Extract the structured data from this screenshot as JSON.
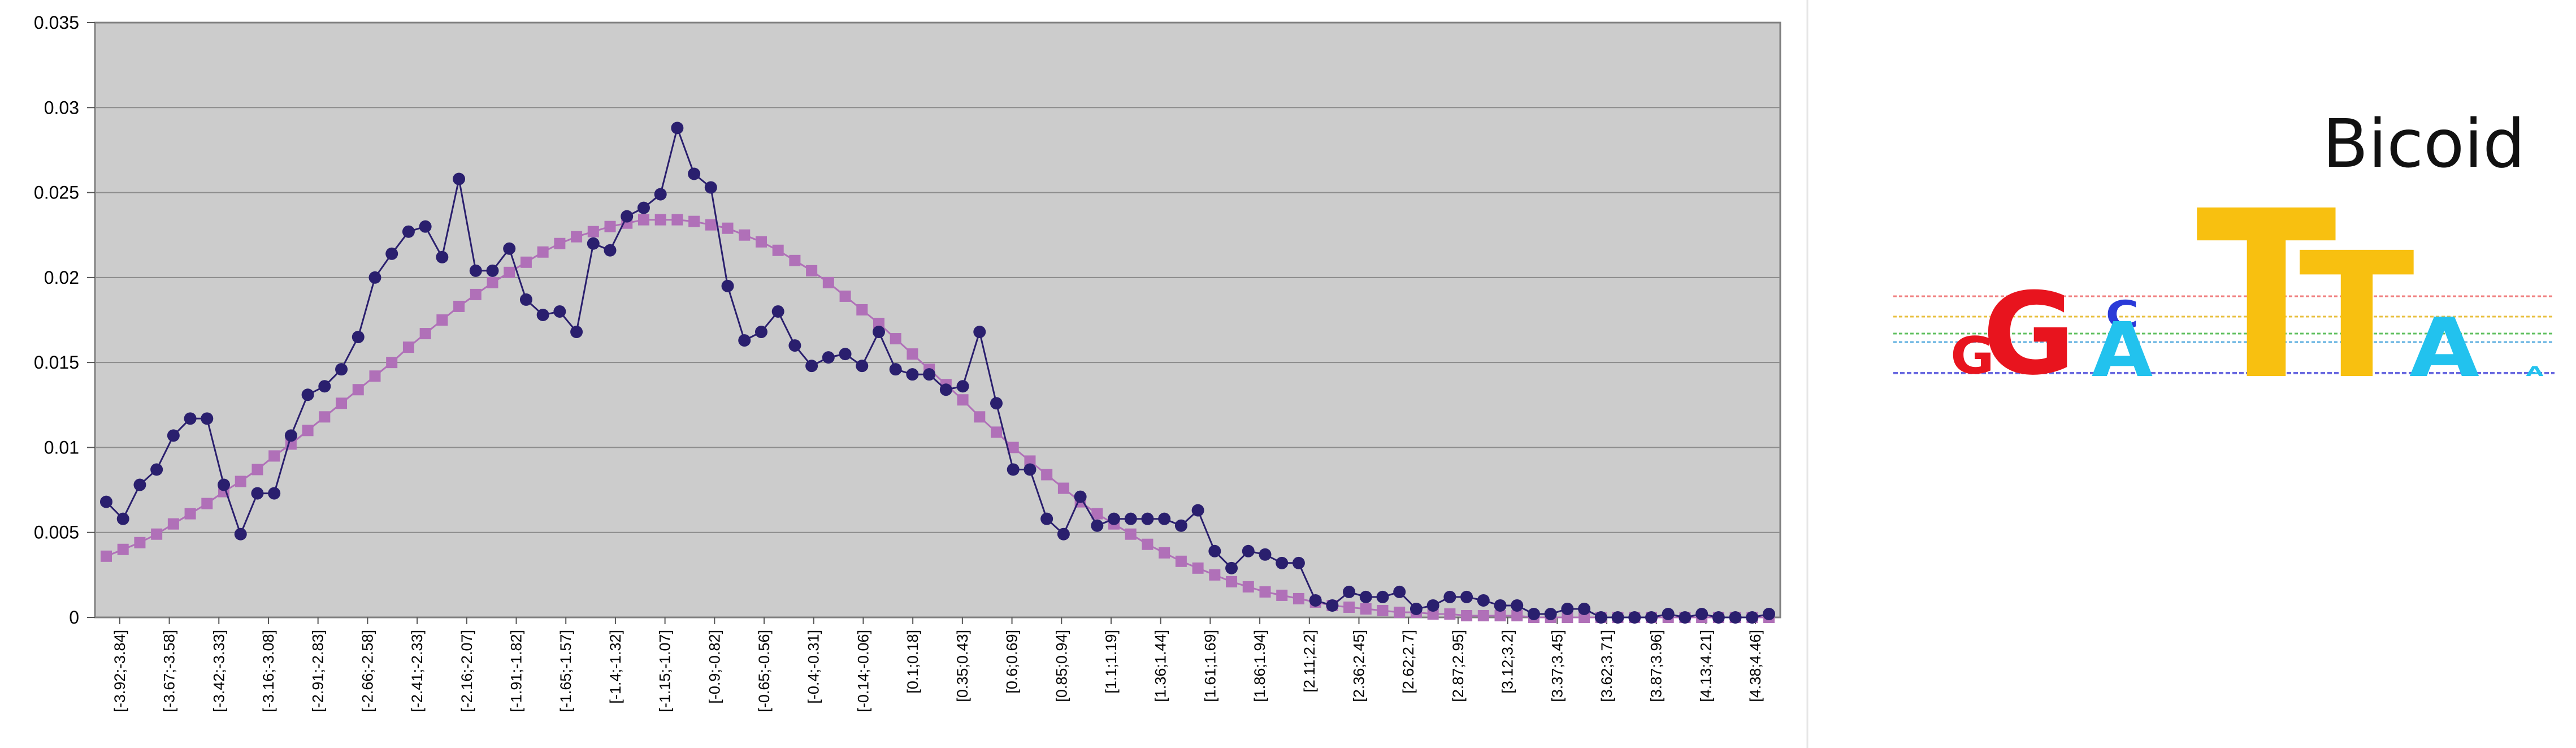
{
  "chart_data": {
    "type": "line",
    "title": "",
    "xlabel": "",
    "ylabel": "",
    "ylim": [
      0,
      0.035
    ],
    "y_ticks": [
      "0",
      "0.005",
      "0.01",
      "0.015",
      "0.02",
      "0.025",
      "0.03",
      "0.035"
    ],
    "grid": true,
    "x_tick_labels": [
      "[-3.92;-3.84]",
      "[-3.67;-3.58]",
      "[-3.42;-3.33]",
      "[-3.16;-3.08]",
      "[-2.91;-2.83]",
      "[-2.66;-2.58]",
      "[-2.41;-2.33]",
      "[-2.16;-2.07]",
      "[-1.91;-1.82]",
      "[-1.65;-1.57]",
      "[-1.4;-1.32]",
      "[-1.15;-1.07]",
      "[-0.9;-0.82]",
      "[-0.65;-0.56]",
      "[-0.4;-0.31]",
      "[-0.14;-0.06]",
      "[0.1;0.18]",
      "[0.35;0.43]",
      "[0.6;0.69]",
      "[0.85;0.94]",
      "[1.1;1.19]",
      "[1.36;1.44]",
      "[1.61;1.69]",
      "[1.86;1.94]",
      "[2.11;2.2]",
      "[2.36;2.45]",
      "[2.62;2.7]",
      "[2.87;2.95]",
      "[3.12;3.2]",
      "[3.37;3.45]",
      "[3.62;3.71]",
      "[3.87;3.96]",
      "[4.13;4.21]",
      "[4.38;4.46]"
    ],
    "point_count": 100,
    "series": [
      {
        "color": "#2a1f6e",
        "marker": "circle",
        "values": [
          0.0068,
          0.0058,
          0.0078,
          0.0087,
          0.0107,
          0.0117,
          0.0117,
          0.0078,
          0.0049,
          0.0073,
          0.0073,
          0.0107,
          0.0131,
          0.0136,
          0.0146,
          0.0165,
          0.02,
          0.0214,
          0.0227,
          0.023,
          0.0212,
          0.0258,
          0.0204,
          0.0204,
          0.0217,
          0.0187,
          0.0178,
          0.018,
          0.0168,
          0.022,
          0.0216,
          0.0236,
          0.0241,
          0.0249,
          0.0288,
          0.0261,
          0.0253,
          0.0195,
          0.0163,
          0.0168,
          0.018,
          0.016,
          0.0148,
          0.0153,
          0.0155,
          0.0148,
          0.0168,
          0.0146,
          0.0143,
          0.0143,
          0.0134,
          0.0136,
          0.0168,
          0.0126,
          0.0087,
          0.0087,
          0.0058,
          0.0049,
          0.0071,
          0.0054,
          0.0058,
          0.0058,
          0.0058,
          0.0058,
          0.0054,
          0.0063,
          0.0039,
          0.0029,
          0.0039,
          0.0037,
          0.0032,
          0.0032,
          0.001,
          0.0007,
          0.0015,
          0.0012,
          0.0012,
          0.0015,
          0.0005,
          0.0007,
          0.0012,
          0.0012,
          0.001,
          0.0007,
          0.0007,
          0.0002,
          0.0002,
          0.0005,
          0.0005,
          0.0,
          0.0,
          0.0,
          0.0,
          0.0002,
          0.0,
          0.0002,
          0.0,
          0.0,
          0.0,
          0.0002
        ]
      },
      {
        "color": "#b070b8",
        "marker": "square",
        "values": [
          0.0036,
          0.004,
          0.0044,
          0.0049,
          0.0055,
          0.0061,
          0.0067,
          0.0074,
          0.008,
          0.0087,
          0.0095,
          0.0102,
          0.011,
          0.0118,
          0.0126,
          0.0134,
          0.0142,
          0.015,
          0.0159,
          0.0167,
          0.0175,
          0.0183,
          0.019,
          0.0197,
          0.0203,
          0.0209,
          0.0215,
          0.022,
          0.0224,
          0.0227,
          0.023,
          0.0232,
          0.0234,
          0.0234,
          0.0234,
          0.0233,
          0.0231,
          0.0229,
          0.0225,
          0.0221,
          0.0216,
          0.021,
          0.0204,
          0.0197,
          0.0189,
          0.0181,
          0.0173,
          0.0164,
          0.0155,
          0.0146,
          0.0137,
          0.0128,
          0.0118,
          0.0109,
          0.01,
          0.0092,
          0.0084,
          0.0076,
          0.0068,
          0.0061,
          0.0055,
          0.0049,
          0.0043,
          0.0038,
          0.0033,
          0.0029,
          0.0025,
          0.0021,
          0.0018,
          0.0015,
          0.0013,
          0.0011,
          0.0009,
          0.0007,
          0.0006,
          0.0005,
          0.0004,
          0.0003,
          0.0003,
          0.0002,
          0.0002,
          0.0001,
          0.0001,
          0.0001,
          0.0001,
          0.0,
          0.0,
          0.0,
          0.0,
          0.0,
          0.0,
          0.0,
          0.0,
          0.0,
          0.0,
          0.0,
          0.0,
          0.0,
          0.0,
          0.0
        ]
      }
    ],
    "colors": {
      "plot_background": "#cccccc",
      "gridline": "#8c8c8c"
    }
  },
  "logo": {
    "title": "Bicoid",
    "letters": [
      {
        "char": "G",
        "color": "#e8141e"
      },
      {
        "char": "G",
        "color": "#e8141e"
      },
      {
        "char": "C",
        "color": "#2a3ad8"
      },
      {
        "char": "A",
        "color": "#22c2ee"
      },
      {
        "char": "T",
        "color": "#f8c010"
      },
      {
        "char": "T",
        "color": "#f8c010"
      },
      {
        "char": "A",
        "color": "#22c2ee"
      },
      {
        "char": "A",
        "color": "#22c2ee"
      }
    ]
  }
}
